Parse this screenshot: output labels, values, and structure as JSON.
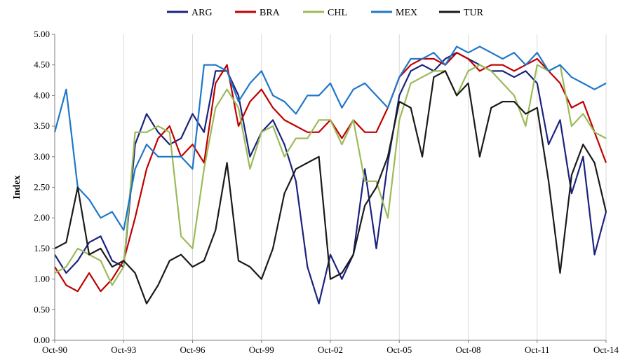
{
  "chart_data": {
    "type": "line",
    "title": "",
    "xlabel": "",
    "ylabel": "Index",
    "ylim": [
      0,
      5
    ],
    "yticks": [
      "0.00",
      "0.50",
      "1.00",
      "1.50",
      "2.00",
      "2.50",
      "3.00",
      "3.50",
      "4.00",
      "4.50",
      "5.00"
    ],
    "xtick_labels": [
      "Oct-90",
      "Oct-93",
      "Oct-96",
      "Oct-99",
      "Oct-02",
      "Oct-05",
      "Oct-08",
      "Oct-11",
      "Oct-14"
    ],
    "x_grid": true,
    "y_grid": false,
    "legend_position": "top",
    "series": [
      {
        "name": "ARG",
        "color": "#1a237e",
        "x": [
          1990.75,
          1991.25,
          1991.75,
          1992.25,
          1992.75,
          1993.25,
          1993.75,
          1994.25,
          1994.75,
          1995.25,
          1995.75,
          1996.25,
          1996.75,
          1997.25,
          1997.75,
          1998.25,
          1998.75,
          1999.25,
          1999.75,
          2000.25,
          2000.75,
          2001.25,
          2001.75,
          2002.25,
          2002.75,
          2003.25,
          2003.75,
          2004.25,
          2004.75,
          2005.25,
          2005.75,
          2006.25,
          2006.75,
          2007.25,
          2007.75,
          2008.25,
          2008.75,
          2009.25,
          2009.75,
          2010.25,
          2010.75,
          2011.25,
          2011.75,
          2012.25,
          2012.75,
          2013.25,
          2013.75,
          2014.25,
          2014.75
        ],
        "values": [
          1.4,
          1.1,
          1.3,
          1.6,
          1.7,
          1.3,
          1.2,
          3.2,
          3.7,
          3.4,
          3.2,
          3.3,
          3.7,
          3.4,
          4.4,
          4.4,
          4.0,
          3.0,
          3.4,
          3.6,
          3.2,
          2.6,
          1.2,
          0.6,
          1.4,
          1.0,
          1.4,
          2.8,
          1.5,
          2.9,
          4.0,
          4.4,
          4.5,
          4.4,
          4.6,
          4.7,
          4.6,
          4.5,
          4.4,
          4.4,
          4.3,
          4.4,
          4.2,
          3.2,
          3.6,
          2.4,
          3.0,
          1.4,
          2.1
        ]
      },
      {
        "name": "BRA",
        "color": "#c00000",
        "x": [
          1990.75,
          1991.25,
          1991.75,
          1992.25,
          1992.75,
          1993.25,
          1993.75,
          1994.25,
          1994.75,
          1995.25,
          1995.75,
          1996.25,
          1996.75,
          1997.25,
          1997.75,
          1998.25,
          1998.75,
          1999.25,
          1999.75,
          2000.25,
          2000.75,
          2001.25,
          2001.75,
          2002.25,
          2002.75,
          2003.25,
          2003.75,
          2004.25,
          2004.75,
          2005.25,
          2005.75,
          2006.25,
          2006.75,
          2007.25,
          2007.75,
          2008.25,
          2008.75,
          2009.25,
          2009.75,
          2010.25,
          2010.75,
          2011.25,
          2011.75,
          2012.25,
          2012.75,
          2013.25,
          2013.75,
          2014.25,
          2014.75
        ],
        "values": [
          1.2,
          0.9,
          0.8,
          1.1,
          0.8,
          1.0,
          1.3,
          2.0,
          2.8,
          3.3,
          3.5,
          3.0,
          3.2,
          2.9,
          4.2,
          4.5,
          3.5,
          3.9,
          4.1,
          3.8,
          3.6,
          3.5,
          3.4,
          3.4,
          3.6,
          3.3,
          3.6,
          3.4,
          3.4,
          3.8,
          4.3,
          4.5,
          4.6,
          4.6,
          4.5,
          4.7,
          4.6,
          4.4,
          4.5,
          4.5,
          4.4,
          4.5,
          4.6,
          4.4,
          4.2,
          3.8,
          3.9,
          3.4,
          2.9
        ]
      },
      {
        "name": "CHL",
        "color": "#9bbb59",
        "x": [
          1990.75,
          1991.25,
          1991.75,
          1992.25,
          1992.75,
          1993.25,
          1993.75,
          1994.25,
          1994.75,
          1995.25,
          1995.75,
          1996.25,
          1996.75,
          1997.25,
          1997.75,
          1998.25,
          1998.75,
          1999.25,
          1999.75,
          2000.25,
          2000.75,
          2001.25,
          2001.75,
          2002.25,
          2002.75,
          2003.25,
          2003.75,
          2004.25,
          2004.75,
          2005.25,
          2005.75,
          2006.25,
          2006.75,
          2007.25,
          2007.75,
          2008.25,
          2008.75,
          2009.25,
          2009.75,
          2010.25,
          2010.75,
          2011.25,
          2011.75,
          2012.25,
          2012.75,
          2013.25,
          2013.75,
          2014.25,
          2014.75
        ],
        "values": [
          1.1,
          1.2,
          1.5,
          1.4,
          1.3,
          0.9,
          1.2,
          3.4,
          3.4,
          3.5,
          3.4,
          1.7,
          1.5,
          2.8,
          3.8,
          4.1,
          3.8,
          2.8,
          3.4,
          3.5,
          3.0,
          3.3,
          3.3,
          3.6,
          3.6,
          3.2,
          3.6,
          2.6,
          2.6,
          2.0,
          3.6,
          4.2,
          4.3,
          4.4,
          4.4,
          4.0,
          4.4,
          4.5,
          4.4,
          4.2,
          4.0,
          3.5,
          4.5,
          4.4,
          4.5,
          3.5,
          3.7,
          3.4,
          3.3
        ]
      },
      {
        "name": "MEX",
        "color": "#1f77c9",
        "x": [
          1990.75,
          1991.25,
          1991.75,
          1992.25,
          1992.75,
          1993.25,
          1993.75,
          1994.25,
          1994.75,
          1995.25,
          1995.75,
          1996.25,
          1996.75,
          1997.25,
          1997.75,
          1998.25,
          1998.75,
          1999.25,
          1999.75,
          2000.25,
          2000.75,
          2001.25,
          2001.75,
          2002.25,
          2002.75,
          2003.25,
          2003.75,
          2004.25,
          2004.75,
          2005.25,
          2005.75,
          2006.25,
          2006.75,
          2007.25,
          2007.75,
          2008.25,
          2008.75,
          2009.25,
          2009.75,
          2010.25,
          2010.75,
          2011.25,
          2011.75,
          2012.25,
          2012.75,
          2013.25,
          2013.75,
          2014.25,
          2014.75
        ],
        "values": [
          3.4,
          4.1,
          2.5,
          2.3,
          2.0,
          2.1,
          1.8,
          2.8,
          3.2,
          3.0,
          3.0,
          3.0,
          2.8,
          4.5,
          4.5,
          4.4,
          3.9,
          4.2,
          4.4,
          4.0,
          3.9,
          3.7,
          4.0,
          4.0,
          4.2,
          3.8,
          4.1,
          4.2,
          4.0,
          3.8,
          4.3,
          4.6,
          4.6,
          4.7,
          4.5,
          4.8,
          4.7,
          4.8,
          4.7,
          4.6,
          4.7,
          4.5,
          4.7,
          4.4,
          4.5,
          4.3,
          4.2,
          4.1,
          4.2
        ]
      },
      {
        "name": "TUR",
        "color": "#1a1a1a",
        "x": [
          1990.75,
          1991.25,
          1991.75,
          1992.25,
          1992.75,
          1993.25,
          1993.75,
          1994.25,
          1994.75,
          1995.25,
          1995.75,
          1996.25,
          1996.75,
          1997.25,
          1997.75,
          1998.25,
          1998.75,
          1999.25,
          1999.75,
          2000.25,
          2000.75,
          2001.25,
          2001.75,
          2002.25,
          2002.75,
          2003.25,
          2003.75,
          2004.25,
          2004.75,
          2005.25,
          2005.75,
          2006.25,
          2006.75,
          2007.25,
          2007.75,
          2008.25,
          2008.75,
          2009.25,
          2009.75,
          2010.25,
          2010.75,
          2011.25,
          2011.75,
          2012.25,
          2012.75,
          2013.25,
          2013.75,
          2014.25,
          2014.75
        ],
        "values": [
          1.5,
          1.6,
          2.5,
          1.4,
          1.5,
          1.2,
          1.3,
          1.1,
          0.6,
          0.9,
          1.3,
          1.4,
          1.2,
          1.3,
          1.8,
          2.9,
          1.3,
          1.2,
          1.0,
          1.5,
          2.4,
          2.8,
          2.9,
          3.0,
          1.0,
          1.1,
          1.4,
          2.2,
          2.5,
          3.0,
          3.9,
          3.8,
          3.0,
          4.3,
          4.4,
          4.0,
          4.2,
          3.0,
          3.8,
          3.9,
          3.9,
          3.7,
          3.8,
          2.6,
          1.1,
          2.7,
          3.2,
          2.9,
          2.1
        ]
      }
    ]
  }
}
